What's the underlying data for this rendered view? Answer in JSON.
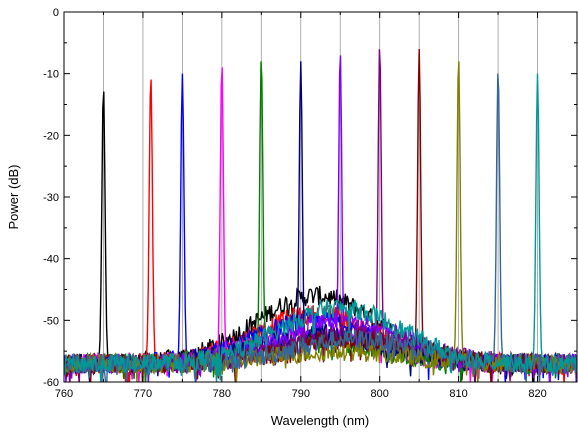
{
  "chart_data": {
    "type": "line",
    "title": "",
    "xlabel": "Wavelength (nm)",
    "ylabel": "Power (dB)",
    "xlim": [
      760,
      825
    ],
    "ylim": [
      -60,
      0
    ],
    "x_ticks": [
      760,
      770,
      780,
      790,
      800,
      810,
      820
    ],
    "y_ticks": [
      0,
      -10,
      -20,
      -30,
      -40,
      -50,
      -60
    ],
    "x_tick_labels": [
      "760",
      "770",
      "780",
      "790",
      "800",
      "810",
      "820"
    ],
    "y_tick_labels": [
      "0",
      "-10",
      "-20",
      "-30",
      "-40",
      "-50",
      "-60"
    ],
    "grid": "vertical at x = 765, 770, 775, ..., 820",
    "vertical_gridlines": [
      765,
      770,
      775,
      780,
      785,
      790,
      795,
      800,
      805,
      810,
      815,
      820
    ],
    "legend": "none",
    "noise_floor_db": -57,
    "series": [
      {
        "peak_nm": 765,
        "peak_db": -12,
        "color": "#000000",
        "envelope_center_nm": 792,
        "envelope_peak_db": -46
      },
      {
        "peak_nm": 771,
        "peak_db": -10,
        "color": "#ff0000",
        "envelope_center_nm": 792,
        "envelope_peak_db": -49
      },
      {
        "peak_nm": 775,
        "peak_db": -10,
        "color": "#0000ff",
        "envelope_center_nm": 792,
        "envelope_peak_db": -50
      },
      {
        "peak_nm": 780,
        "peak_db": -8,
        "color": "#ff00ff",
        "envelope_center_nm": 792,
        "envelope_peak_db": -52
      },
      {
        "peak_nm": 785,
        "peak_db": -7,
        "color": "#008000",
        "envelope_center_nm": 792,
        "envelope_peak_db": -53
      },
      {
        "peak_nm": 790,
        "peak_db": -8,
        "color": "#000080",
        "envelope_center_nm": 792,
        "envelope_peak_db": -52
      },
      {
        "peak_nm": 795,
        "peak_db": -6,
        "color": "#8000ff",
        "envelope_center_nm": 795,
        "envelope_peak_db": -50
      },
      {
        "peak_nm": 800,
        "peak_db": -5,
        "color": "#800080",
        "envelope_center_nm": 797,
        "envelope_peak_db": -52
      },
      {
        "peak_nm": 805,
        "peak_db": -6,
        "color": "#800000",
        "envelope_center_nm": 797,
        "envelope_peak_db": -53
      },
      {
        "peak_nm": 810,
        "peak_db": -7,
        "color": "#808000",
        "envelope_center_nm": 795,
        "envelope_peak_db": -55
      },
      {
        "peak_nm": 815,
        "peak_db": -9,
        "color": "#336699",
        "envelope_center_nm": 797,
        "envelope_peak_db": -53
      },
      {
        "peak_nm": 820,
        "peak_db": -10,
        "color": "#009999",
        "envelope_center_nm": 795,
        "envelope_peak_db": -48
      }
    ]
  }
}
